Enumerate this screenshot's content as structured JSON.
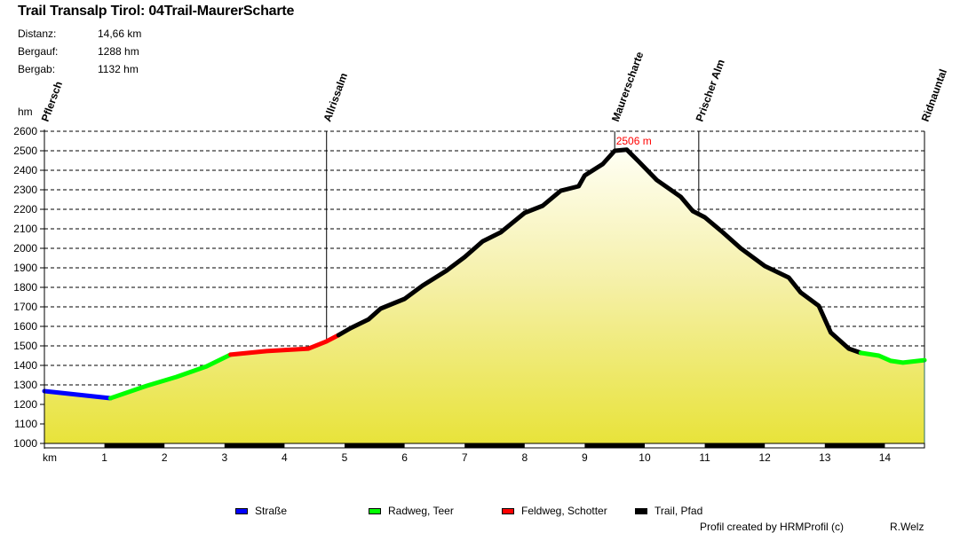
{
  "header": {
    "title": "Trail Transalp Tirol: 04Trail-MaurerScharte",
    "stats": [
      {
        "label": "Distanz:",
        "value": "14,66 km"
      },
      {
        "label": "Bergauf:",
        "value": "1288 hm"
      },
      {
        "label": "Bergab:",
        "value": "1132 hm"
      }
    ]
  },
  "axis": {
    "y_unit": "hm",
    "x_unit": "km",
    "y_ticks": [
      "2600",
      "2500",
      "2400",
      "2300",
      "2200",
      "2100",
      "2000",
      "1900",
      "1800",
      "1700",
      "1600",
      "1500",
      "1400",
      "1300",
      "1200",
      "1100",
      "1000"
    ],
    "x_ticks": [
      "1",
      "2",
      "3",
      "4",
      "5",
      "6",
      "7",
      "8",
      "9",
      "10",
      "11",
      "12",
      "13",
      "14"
    ]
  },
  "waypoints": [
    {
      "name": "Pflersch",
      "km": 0.0
    },
    {
      "name": "Allrissalm",
      "km": 4.7
    },
    {
      "name": "Maurerscharte",
      "km": 9.5
    },
    {
      "name": "Prischer Alm",
      "km": 10.9
    },
    {
      "name": "Ridnauntal",
      "km": 14.66
    }
  ],
  "peak_label": "2506 m",
  "legend": [
    {
      "label": "Straße",
      "color": "#0000ff"
    },
    {
      "label": "Radweg, Teer",
      "color": "#00ff00"
    },
    {
      "label": "Feldweg, Schotter",
      "color": "#ff0000"
    },
    {
      "label": "Trail, Pfad",
      "color": "#000000"
    }
  ],
  "footer": {
    "credit": "Profil created by HRMProfil (c)",
    "author": "R.Welz"
  },
  "chart_data": {
    "type": "area",
    "title": "Trail Transalp Tirol: 04Trail-MaurerScharte",
    "xlabel": "km",
    "ylabel": "hm",
    "xlim": [
      0,
      14.66
    ],
    "ylim": [
      1000,
      2600
    ],
    "grid": true,
    "legend_position": "bottom",
    "series": [
      {
        "name": "Straße",
        "color": "#0000ff",
        "x": [
          0.0,
          1.1
        ],
        "y": [
          1268,
          1232
        ]
      },
      {
        "name": "Radweg, Teer",
        "color": "#00ff00",
        "x": [
          1.1,
          1.7,
          2.2,
          2.7,
          3.1
        ],
        "y": [
          1232,
          1295,
          1341,
          1395,
          1455
        ]
      },
      {
        "name": "Feldweg, Schotter",
        "color": "#ff0000",
        "x": [
          3.1,
          3.7,
          4.4,
          4.7,
          4.9
        ],
        "y": [
          1455,
          1473,
          1486,
          1523,
          1555
        ]
      },
      {
        "name": "Trail, Pfad",
        "color": "#000000",
        "x": [
          4.9,
          5.1,
          5.4,
          5.6,
          6.0,
          6.3,
          6.7,
          7.0,
          7.3,
          7.6,
          8.0,
          8.3,
          8.6,
          8.9,
          9.0,
          9.3,
          9.5,
          9.7,
          9.9,
          10.2,
          10.6,
          10.8,
          11.0,
          11.3,
          11.6,
          12.0,
          12.4,
          12.6,
          12.9,
          13.1,
          13.4,
          13.6
        ],
        "y": [
          1555,
          1591,
          1636,
          1691,
          1741,
          1809,
          1886,
          1955,
          2036,
          2082,
          2182,
          2218,
          2295,
          2318,
          2373,
          2432,
          2500,
          2506,
          2445,
          2350,
          2264,
          2191,
          2159,
          2082,
          2000,
          1909,
          1850,
          1773,
          1705,
          1568,
          1486,
          1464
        ]
      },
      {
        "name": "Radweg, Teer",
        "color": "#00ff00",
        "x": [
          13.6,
          13.9,
          14.1,
          14.3,
          14.66
        ],
        "y": [
          1464,
          1450,
          1423,
          1414,
          1427
        ]
      }
    ],
    "annotations": [
      {
        "text": "2506 m",
        "x": 9.7,
        "y": 2506
      },
      {
        "text": "Pflersch",
        "x": 0.0
      },
      {
        "text": "Allrissalm",
        "x": 4.7
      },
      {
        "text": "Maurerscharte",
        "x": 9.5
      },
      {
        "text": "Prischer Alm",
        "x": 10.9
      },
      {
        "text": "Ridnauntal",
        "x": 14.66
      }
    ]
  }
}
